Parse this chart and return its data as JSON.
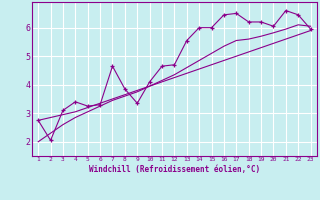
{
  "title": "",
  "xlabel": "Windchill (Refroidissement éolien,°C)",
  "x": [
    1,
    2,
    3,
    4,
    5,
    6,
    7,
    8,
    9,
    10,
    11,
    12,
    13,
    14,
    15,
    16,
    17,
    18,
    19,
    20,
    21,
    22,
    23
  ],
  "y_line": [
    2.75,
    2.05,
    3.1,
    3.4,
    3.25,
    3.3,
    4.65,
    3.85,
    3.35,
    4.1,
    4.65,
    4.7,
    5.55,
    6.0,
    6.0,
    6.45,
    6.5,
    6.2,
    6.2,
    6.05,
    6.6,
    6.45,
    5.95
  ],
  "y_reg1": [
    2.75,
    2.85,
    2.95,
    3.05,
    3.2,
    3.35,
    3.5,
    3.65,
    3.8,
    3.95,
    4.1,
    4.25,
    4.4,
    4.55,
    4.7,
    4.85,
    5.0,
    5.15,
    5.3,
    5.45,
    5.6,
    5.75,
    5.9
  ],
  "y_reg2": [
    2.0,
    2.3,
    2.6,
    2.85,
    3.05,
    3.25,
    3.45,
    3.6,
    3.75,
    3.95,
    4.15,
    4.35,
    4.6,
    4.85,
    5.1,
    5.35,
    5.55,
    5.6,
    5.7,
    5.82,
    5.95,
    6.1,
    6.05
  ],
  "color_main": "#8b008b",
  "bg_color": "#c8eef0",
  "grid_color": "#ffffff",
  "ylim": [
    1.5,
    6.9
  ],
  "xlim": [
    0.5,
    23.5
  ],
  "yticks": [
    2,
    3,
    4,
    5,
    6
  ],
  "xticks": [
    1,
    2,
    3,
    4,
    5,
    6,
    7,
    8,
    9,
    10,
    11,
    12,
    13,
    14,
    15,
    16,
    17,
    18,
    19,
    20,
    21,
    22,
    23
  ]
}
